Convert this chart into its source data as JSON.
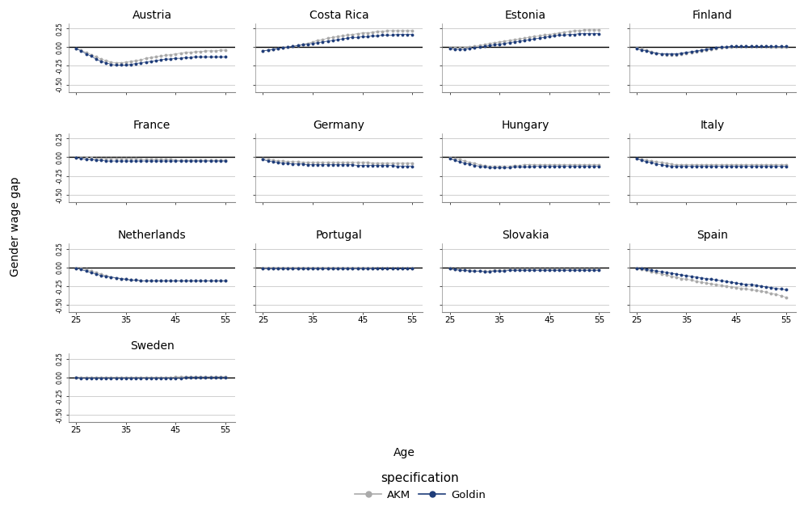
{
  "countries": [
    "Austria",
    "Costa Rica",
    "Estonia",
    "Finland",
    "France",
    "Germany",
    "Hungary",
    "Italy",
    "Netherlands",
    "Portugal",
    "Slovakia",
    "Spain",
    "Sweden"
  ],
  "age_range": [
    25,
    56
  ],
  "ylim": [
    -0.6,
    0.32
  ],
  "yticks": [
    0.25,
    0.0,
    -0.25,
    -0.5
  ],
  "xticks": [
    25,
    35,
    45,
    55
  ],
  "color_akm": "#aaaaaa",
  "color_goldin": "#1f3d7a",
  "ylabel": "Gender wage gap",
  "xlabel": "Age",
  "legend_title": "specification",
  "legend_labels": [
    "AKM",
    "Goldin"
  ],
  "ncols": 4,
  "nrows": 4,
  "data": {
    "Austria": {
      "akm": [
        -0.02,
        -0.04,
        -0.07,
        -0.1,
        -0.13,
        -0.16,
        -0.18,
        -0.2,
        -0.21,
        -0.21,
        -0.2,
        -0.19,
        -0.18,
        -0.17,
        -0.15,
        -0.14,
        -0.13,
        -0.12,
        -0.11,
        -0.1,
        -0.09,
        -0.08,
        -0.07,
        -0.07,
        -0.06,
        -0.06,
        -0.05,
        -0.05,
        -0.05,
        -0.04,
        -0.04
      ],
      "goldin": [
        -0.02,
        -0.05,
        -0.09,
        -0.12,
        -0.16,
        -0.19,
        -0.21,
        -0.23,
        -0.24,
        -0.24,
        -0.24,
        -0.23,
        -0.22,
        -0.21,
        -0.2,
        -0.19,
        -0.18,
        -0.17,
        -0.16,
        -0.16,
        -0.15,
        -0.15,
        -0.14,
        -0.14,
        -0.13,
        -0.13,
        -0.13,
        -0.13,
        -0.13,
        -0.13,
        -0.13
      ]
    },
    "Costa Rica": {
      "akm": [
        -0.05,
        -0.04,
        -0.03,
        -0.02,
        -0.01,
        0.0,
        0.01,
        0.02,
        0.04,
        0.05,
        0.07,
        0.09,
        0.1,
        0.12,
        0.13,
        0.14,
        0.15,
        0.16,
        0.17,
        0.18,
        0.19,
        0.19,
        0.2,
        0.21,
        0.21,
        0.22,
        0.22,
        0.22,
        0.22,
        0.22,
        0.22
      ],
      "goldin": [
        -0.05,
        -0.04,
        -0.03,
        -0.02,
        -0.01,
        0.0,
        0.01,
        0.02,
        0.03,
        0.04,
        0.05,
        0.06,
        0.07,
        0.08,
        0.09,
        0.1,
        0.11,
        0.12,
        0.13,
        0.13,
        0.14,
        0.14,
        0.15,
        0.15,
        0.16,
        0.16,
        0.16,
        0.17,
        0.17,
        0.17,
        0.17
      ]
    },
    "Estonia": {
      "akm": [
        -0.01,
        -0.01,
        -0.01,
        -0.01,
        0.0,
        0.01,
        0.02,
        0.03,
        0.05,
        0.06,
        0.07,
        0.08,
        0.09,
        0.1,
        0.11,
        0.12,
        0.13,
        0.14,
        0.15,
        0.16,
        0.17,
        0.18,
        0.19,
        0.2,
        0.21,
        0.22,
        0.22,
        0.23,
        0.23,
        0.23,
        0.23
      ],
      "goldin": [
        -0.02,
        -0.03,
        -0.03,
        -0.03,
        -0.02,
        -0.01,
        0.0,
        0.01,
        0.02,
        0.03,
        0.04,
        0.05,
        0.06,
        0.07,
        0.08,
        0.09,
        0.1,
        0.11,
        0.12,
        0.13,
        0.14,
        0.15,
        0.16,
        0.16,
        0.17,
        0.17,
        0.18,
        0.18,
        0.18,
        0.18,
        0.18
      ]
    },
    "Finland": {
      "akm": [
        -0.01,
        -0.02,
        -0.04,
        -0.06,
        -0.08,
        -0.09,
        -0.1,
        -0.1,
        -0.1,
        -0.09,
        -0.08,
        -0.07,
        -0.06,
        -0.05,
        -0.04,
        -0.03,
        -0.02,
        -0.01,
        0.0,
        0.0,
        0.01,
        0.01,
        0.01,
        0.01,
        0.01,
        0.01,
        0.01,
        0.0,
        0.0,
        0.0,
        0.0
      ],
      "goldin": [
        -0.02,
        -0.04,
        -0.05,
        -0.07,
        -0.08,
        -0.09,
        -0.09,
        -0.09,
        -0.09,
        -0.08,
        -0.07,
        -0.06,
        -0.05,
        -0.04,
        -0.03,
        -0.02,
        -0.01,
        0.0,
        0.0,
        0.01,
        0.01,
        0.01,
        0.01,
        0.01,
        0.01,
        0.01,
        0.01,
        0.01,
        0.01,
        0.01,
        0.01
      ]
    },
    "France": {
      "akm": [
        -0.01,
        -0.01,
        -0.01,
        -0.01,
        -0.02,
        -0.02,
        -0.02,
        -0.02,
        -0.02,
        -0.02,
        -0.02,
        -0.02,
        -0.02,
        -0.03,
        -0.03,
        -0.03,
        -0.03,
        -0.03,
        -0.03,
        -0.03,
        -0.04,
        -0.04,
        -0.04,
        -0.04,
        -0.04,
        -0.04,
        -0.04,
        -0.04,
        -0.04,
        -0.04,
        -0.04
      ],
      "goldin": [
        -0.01,
        -0.02,
        -0.03,
        -0.03,
        -0.04,
        -0.04,
        -0.05,
        -0.05,
        -0.05,
        -0.05,
        -0.05,
        -0.05,
        -0.05,
        -0.05,
        -0.05,
        -0.05,
        -0.05,
        -0.05,
        -0.05,
        -0.05,
        -0.05,
        -0.05,
        -0.05,
        -0.05,
        -0.05,
        -0.05,
        -0.05,
        -0.05,
        -0.05,
        -0.05,
        -0.05
      ]
    },
    "Germany": {
      "akm": [
        -0.02,
        -0.03,
        -0.04,
        -0.05,
        -0.05,
        -0.06,
        -0.06,
        -0.06,
        -0.07,
        -0.07,
        -0.07,
        -0.07,
        -0.07,
        -0.07,
        -0.07,
        -0.07,
        -0.07,
        -0.07,
        -0.07,
        -0.07,
        -0.07,
        -0.07,
        -0.08,
        -0.08,
        -0.08,
        -0.08,
        -0.08,
        -0.08,
        -0.08,
        -0.08,
        -0.08
      ],
      "goldin": [
        -0.03,
        -0.05,
        -0.06,
        -0.07,
        -0.08,
        -0.08,
        -0.09,
        -0.09,
        -0.09,
        -0.1,
        -0.1,
        -0.1,
        -0.1,
        -0.1,
        -0.1,
        -0.1,
        -0.1,
        -0.1,
        -0.1,
        -0.11,
        -0.11,
        -0.11,
        -0.11,
        -0.11,
        -0.11,
        -0.11,
        -0.11,
        -0.12,
        -0.12,
        -0.12,
        -0.12
      ]
    },
    "Hungary": {
      "akm": [
        -0.01,
        -0.02,
        -0.03,
        -0.05,
        -0.07,
        -0.08,
        -0.1,
        -0.11,
        -0.12,
        -0.12,
        -0.12,
        -0.12,
        -0.12,
        -0.11,
        -0.11,
        -0.1,
        -0.1,
        -0.1,
        -0.1,
        -0.1,
        -0.1,
        -0.1,
        -0.1,
        -0.1,
        -0.1,
        -0.1,
        -0.1,
        -0.1,
        -0.1,
        -0.1,
        -0.1
      ],
      "goldin": [
        -0.02,
        -0.04,
        -0.06,
        -0.08,
        -0.09,
        -0.11,
        -0.12,
        -0.13,
        -0.14,
        -0.14,
        -0.14,
        -0.14,
        -0.14,
        -0.13,
        -0.13,
        -0.13,
        -0.13,
        -0.12,
        -0.12,
        -0.12,
        -0.12,
        -0.12,
        -0.12,
        -0.12,
        -0.12,
        -0.12,
        -0.12,
        -0.12,
        -0.12,
        -0.12,
        -0.12
      ]
    },
    "Italy": {
      "akm": [
        -0.02,
        -0.03,
        -0.04,
        -0.05,
        -0.06,
        -0.07,
        -0.08,
        -0.09,
        -0.1,
        -0.1,
        -0.1,
        -0.1,
        -0.1,
        -0.1,
        -0.1,
        -0.1,
        -0.1,
        -0.1,
        -0.1,
        -0.1,
        -0.1,
        -0.1,
        -0.1,
        -0.1,
        -0.1,
        -0.1,
        -0.1,
        -0.1,
        -0.1,
        -0.1,
        -0.1
      ],
      "goldin": [
        -0.02,
        -0.04,
        -0.06,
        -0.07,
        -0.09,
        -0.1,
        -0.11,
        -0.12,
        -0.12,
        -0.12,
        -0.12,
        -0.12,
        -0.12,
        -0.12,
        -0.12,
        -0.12,
        -0.12,
        -0.12,
        -0.12,
        -0.12,
        -0.12,
        -0.12,
        -0.12,
        -0.12,
        -0.12,
        -0.12,
        -0.12,
        -0.12,
        -0.12,
        -0.12,
        -0.12
      ]
    },
    "Netherlands": {
      "akm": [
        -0.01,
        -0.02,
        -0.03,
        -0.05,
        -0.07,
        -0.09,
        -0.11,
        -0.13,
        -0.14,
        -0.15,
        -0.16,
        -0.17,
        -0.17,
        -0.18,
        -0.18,
        -0.18,
        -0.18,
        -0.18,
        -0.18,
        -0.18,
        -0.18,
        -0.18,
        -0.18,
        -0.18,
        -0.18,
        -0.18,
        -0.18,
        -0.18,
        -0.18,
        -0.18,
        -0.18
      ],
      "goldin": [
        -0.01,
        -0.03,
        -0.05,
        -0.07,
        -0.09,
        -0.11,
        -0.12,
        -0.13,
        -0.14,
        -0.15,
        -0.16,
        -0.17,
        -0.17,
        -0.18,
        -0.18,
        -0.18,
        -0.18,
        -0.18,
        -0.18,
        -0.18,
        -0.18,
        -0.18,
        -0.18,
        -0.18,
        -0.18,
        -0.18,
        -0.18,
        -0.18,
        -0.18,
        -0.18,
        -0.18
      ]
    },
    "Portugal": {
      "akm": [
        -0.01,
        -0.01,
        -0.01,
        -0.01,
        -0.01,
        -0.01,
        -0.01,
        -0.01,
        -0.01,
        -0.01,
        -0.01,
        -0.01,
        -0.01,
        -0.01,
        -0.01,
        -0.01,
        -0.01,
        -0.01,
        -0.01,
        -0.01,
        -0.01,
        -0.01,
        -0.01,
        -0.02,
        -0.02,
        -0.02,
        -0.02,
        -0.02,
        -0.02,
        -0.02,
        -0.02
      ],
      "goldin": [
        -0.01,
        -0.01,
        -0.01,
        -0.01,
        -0.01,
        -0.01,
        -0.01,
        -0.01,
        -0.01,
        -0.01,
        -0.01,
        -0.01,
        -0.01,
        -0.01,
        -0.01,
        -0.01,
        -0.01,
        -0.01,
        -0.01,
        -0.01,
        -0.01,
        -0.01,
        -0.01,
        -0.01,
        -0.01,
        -0.01,
        -0.01,
        -0.01,
        -0.01,
        -0.01,
        -0.01
      ]
    },
    "Slovakia": {
      "akm": [
        -0.02,
        -0.03,
        -0.03,
        -0.04,
        -0.04,
        -0.05,
        -0.05,
        -0.05,
        -0.05,
        -0.04,
        -0.04,
        -0.04,
        -0.03,
        -0.03,
        -0.03,
        -0.03,
        -0.03,
        -0.03,
        -0.03,
        -0.03,
        -0.03,
        -0.03,
        -0.03,
        -0.03,
        -0.03,
        -0.03,
        -0.03,
        -0.03,
        -0.03,
        -0.03,
        -0.03
      ],
      "goldin": [
        -0.02,
        -0.03,
        -0.04,
        -0.04,
        -0.05,
        -0.05,
        -0.05,
        -0.06,
        -0.06,
        -0.05,
        -0.05,
        -0.05,
        -0.04,
        -0.04,
        -0.04,
        -0.04,
        -0.04,
        -0.04,
        -0.04,
        -0.04,
        -0.04,
        -0.04,
        -0.04,
        -0.04,
        -0.04,
        -0.04,
        -0.04,
        -0.04,
        -0.04,
        -0.04,
        -0.04
      ]
    },
    "Spain": {
      "akm": [
        -0.02,
        -0.03,
        -0.04,
        -0.06,
        -0.07,
        -0.09,
        -0.1,
        -0.12,
        -0.13,
        -0.15,
        -0.16,
        -0.17,
        -0.19,
        -0.2,
        -0.21,
        -0.22,
        -0.23,
        -0.24,
        -0.25,
        -0.26,
        -0.27,
        -0.28,
        -0.29,
        -0.3,
        -0.31,
        -0.32,
        -0.33,
        -0.35,
        -0.36,
        -0.38,
        -0.4
      ],
      "goldin": [
        -0.01,
        -0.02,
        -0.03,
        -0.04,
        -0.05,
        -0.06,
        -0.07,
        -0.08,
        -0.09,
        -0.1,
        -0.11,
        -0.12,
        -0.13,
        -0.14,
        -0.15,
        -0.16,
        -0.17,
        -0.18,
        -0.19,
        -0.2,
        -0.21,
        -0.22,
        -0.23,
        -0.23,
        -0.24,
        -0.25,
        -0.26,
        -0.27,
        -0.28,
        -0.29,
        -0.3
      ]
    },
    "Sweden": {
      "akm": [
        0.0,
        0.0,
        0.0,
        0.0,
        0.0,
        0.0,
        0.0,
        0.0,
        0.0,
        0.0,
        0.0,
        0.0,
        0.0,
        0.0,
        0.0,
        0.0,
        0.0,
        0.0,
        0.0,
        0.0,
        0.01,
        0.01,
        0.01,
        0.01,
        0.01,
        0.01,
        0.01,
        0.01,
        0.01,
        0.01,
        0.01
      ],
      "goldin": [
        0.0,
        -0.01,
        -0.01,
        -0.01,
        -0.01,
        -0.01,
        -0.01,
        -0.01,
        -0.01,
        -0.01,
        -0.01,
        -0.01,
        -0.01,
        -0.01,
        -0.01,
        -0.01,
        -0.01,
        -0.01,
        -0.01,
        -0.01,
        -0.01,
        -0.01,
        0.0,
        0.0,
        0.0,
        0.0,
        0.0,
        0.0,
        0.0,
        0.0,
        0.0
      ]
    }
  }
}
